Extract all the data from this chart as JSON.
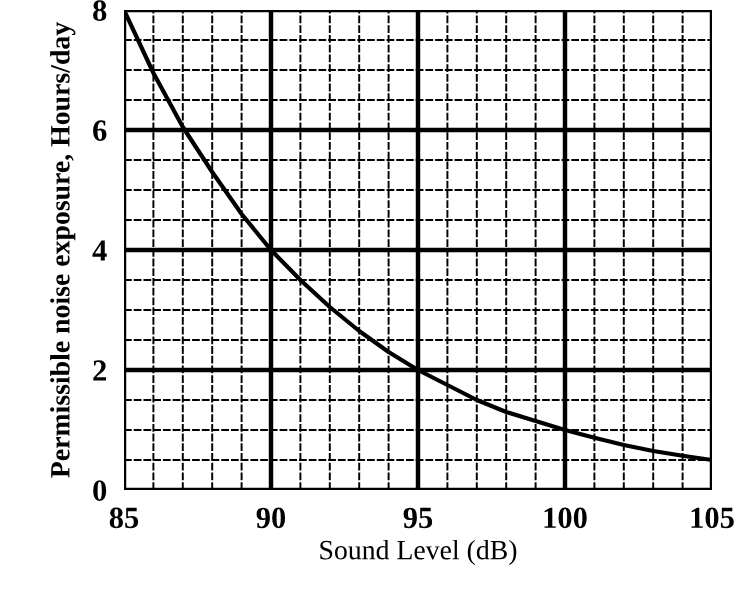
{
  "chart_data": {
    "type": "line",
    "xlabel": "Sound Level (dB)",
    "ylabel": "Permissible noise exposure, Hours/day",
    "x": [
      85,
      86,
      87,
      88,
      89,
      90,
      91,
      92,
      93,
      94,
      95,
      96,
      97,
      98,
      99,
      100,
      101,
      102,
      103,
      104,
      105
    ],
    "values": [
      8,
      6.95,
      6.05,
      5.3,
      4.6,
      4,
      3.5,
      3.05,
      2.65,
      2.3,
      2,
      1.75,
      1.5,
      1.3,
      1.15,
      1,
      0.87,
      0.75,
      0.65,
      0.57,
      0.5
    ],
    "color": "#000000",
    "xlim": [
      85,
      105
    ],
    "ylim": [
      0,
      8
    ],
    "xticks": [
      85,
      90,
      95,
      100,
      105
    ],
    "yticks": [
      0,
      2,
      4,
      6,
      8
    ],
    "grid": true,
    "marker": "none",
    "line_style": "solid"
  }
}
